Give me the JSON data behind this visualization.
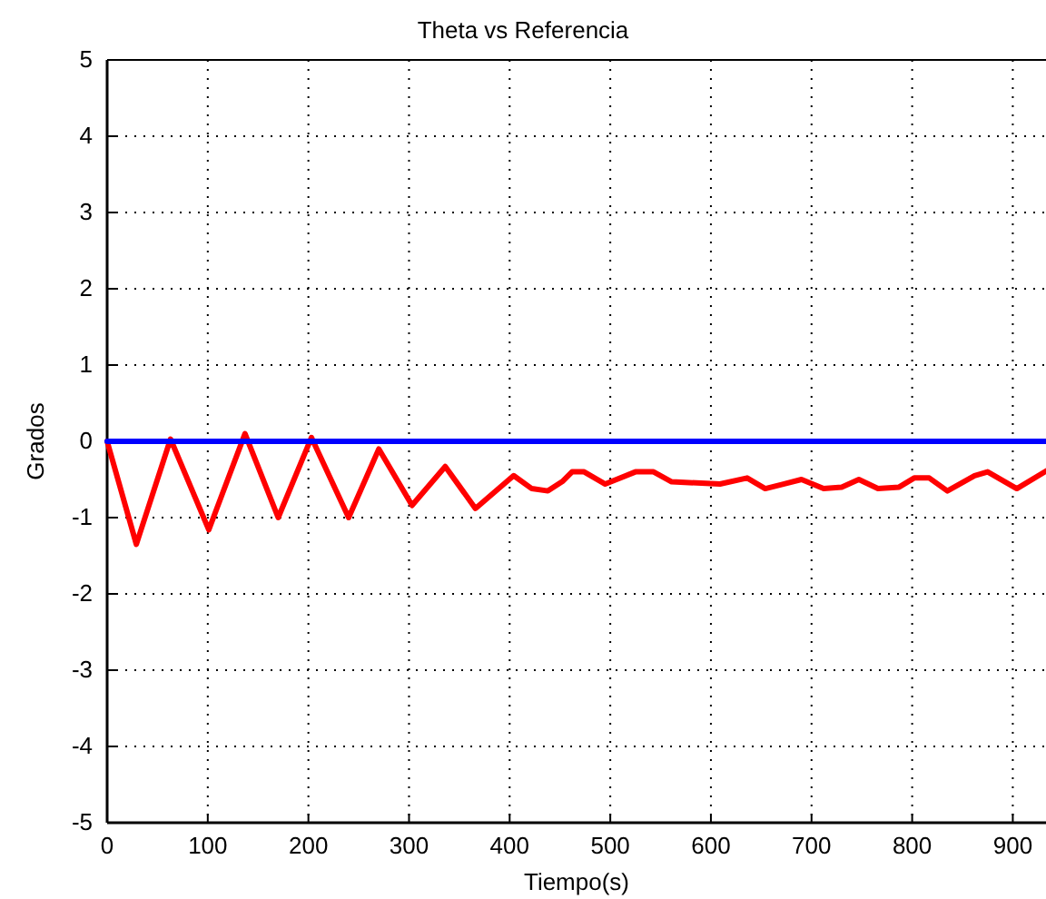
{
  "chart_data": {
    "type": "line",
    "title": "Theta vs Referencia",
    "xlabel": "Tiempo(s)",
    "ylabel": "Grados",
    "xlim": [
      0,
      933
    ],
    "ylim": [
      -5,
      5
    ],
    "xticks": [
      0,
      100,
      200,
      300,
      400,
      500,
      600,
      700,
      800,
      900
    ],
    "yticks": [
      -5,
      -4,
      -3,
      -2,
      -1,
      0,
      1,
      2,
      3,
      4,
      5
    ],
    "grid": true,
    "series": [
      {
        "color": "#ff0000",
        "x": [
          0,
          29,
          63,
          101,
          137,
          170,
          203,
          240,
          270,
          303,
          336,
          366,
          404,
          422,
          438,
          453,
          462,
          474,
          495,
          525,
          543,
          561,
          609,
          636,
          654,
          672,
          690,
          712,
          730,
          747,
          766,
          787,
          802,
          817,
          835,
          862,
          875,
          904,
          933
        ],
        "values": [
          0,
          -1.35,
          0.03,
          -1.16,
          0.1,
          -1.0,
          0.05,
          -1.0,
          -0.1,
          -0.84,
          -0.33,
          -0.88,
          -0.45,
          -0.62,
          -0.65,
          -0.52,
          -0.4,
          -0.4,
          -0.56,
          -0.4,
          -0.4,
          -0.53,
          -0.56,
          -0.48,
          -0.62,
          -0.56,
          -0.5,
          -0.62,
          -0.6,
          -0.5,
          -0.62,
          -0.6,
          -0.48,
          -0.48,
          -0.65,
          -0.45,
          -0.4,
          -0.62,
          -0.39
        ]
      },
      {
        "color": "#0000ff",
        "x": [
          0,
          933
        ],
        "values": [
          0,
          0
        ]
      }
    ]
  }
}
